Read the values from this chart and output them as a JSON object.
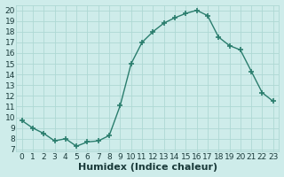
{
  "x": [
    0,
    1,
    2,
    3,
    4,
    5,
    6,
    7,
    8,
    9,
    10,
    11,
    12,
    13,
    14,
    15,
    16,
    17,
    18,
    19,
    20,
    21,
    22,
    23
  ],
  "y": [
    9.7,
    9.0,
    8.5,
    7.8,
    8.0,
    7.3,
    7.7,
    7.8,
    8.3,
    11.1,
    15.0,
    17.0,
    18.0,
    18.8,
    19.3,
    19.7,
    20.0,
    19.5,
    17.5,
    16.7,
    16.3,
    14.3,
    12.3,
    11.5
  ],
  "line_color": "#2a7d6d",
  "marker": "+",
  "marker_size": 4,
  "marker_linewidth": 1.2,
  "xlabel": "Humidex (Indice chaleur)",
  "xlabel_fontsize": 8,
  "ylabel_ticks": [
    7,
    8,
    9,
    10,
    11,
    12,
    13,
    14,
    15,
    16,
    17,
    18,
    19,
    20
  ],
  "xlim": [
    -0.5,
    23.5
  ],
  "ylim": [
    6.8,
    20.5
  ],
  "bg_color": "#ceecea",
  "grid_color": "#aed8d4",
  "tick_fontsize": 6.5,
  "linewidth": 1.0
}
